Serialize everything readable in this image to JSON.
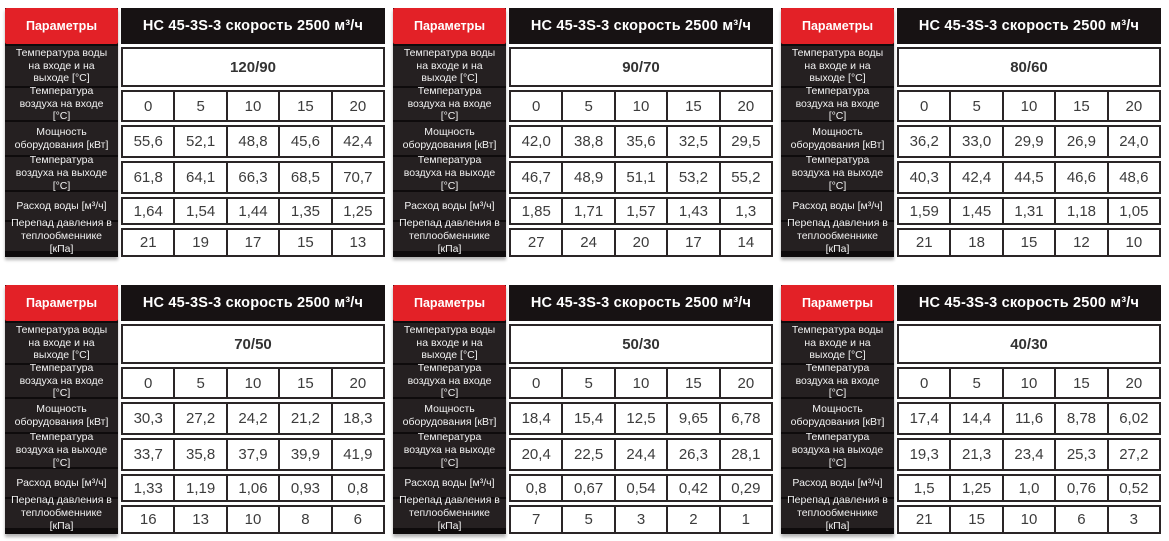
{
  "colors": {
    "accent_red": "#e32127",
    "label_column_bg": "#252021",
    "header_bar_bg": "#171213",
    "cell_border": "#2a2526",
    "value_text": "#3c3c3c"
  },
  "table_header": {
    "param_label": "Параметры",
    "model_label": "НС 45-3S-3 скорость 2500 м³/ч"
  },
  "row_labels": [
    "Температура воды на входе и на выходе [°C]",
    "Температура воздуха на входе [°C]",
    "Мощность оборудования [кВт]",
    "Температура воздуха на выходе [°C]",
    "Расход воды [м³/ч]",
    "Перепад давления в теплообменнике [кПа]"
  ],
  "tables": [
    {
      "water_inout": "120/90",
      "grid": [
        [
          "0",
          "5",
          "10",
          "15",
          "20"
        ],
        [
          "55,6",
          "52,1",
          "48,8",
          "45,6",
          "42,4"
        ],
        [
          "61,8",
          "64,1",
          "66,3",
          "68,5",
          "70,7"
        ],
        [
          "1,64",
          "1,54",
          "1,44",
          "1,35",
          "1,25"
        ],
        [
          "21",
          "19",
          "17",
          "15",
          "13"
        ]
      ]
    },
    {
      "water_inout": "90/70",
      "grid": [
        [
          "0",
          "5",
          "10",
          "15",
          "20"
        ],
        [
          "42,0",
          "38,8",
          "35,6",
          "32,5",
          "29,5"
        ],
        [
          "46,7",
          "48,9",
          "51,1",
          "53,2",
          "55,2"
        ],
        [
          "1,85",
          "1,71",
          "1,57",
          "1,43",
          "1,3"
        ],
        [
          "27",
          "24",
          "20",
          "17",
          "14"
        ]
      ]
    },
    {
      "water_inout": "80/60",
      "grid": [
        [
          "0",
          "5",
          "10",
          "15",
          "20"
        ],
        [
          "36,2",
          "33,0",
          "29,9",
          "26,9",
          "24,0"
        ],
        [
          "40,3",
          "42,4",
          "44,5",
          "46,6",
          "48,6"
        ],
        [
          "1,59",
          "1,45",
          "1,31",
          "1,18",
          "1,05"
        ],
        [
          "21",
          "18",
          "15",
          "12",
          "10"
        ]
      ]
    },
    {
      "water_inout": "70/50",
      "grid": [
        [
          "0",
          "5",
          "10",
          "15",
          "20"
        ],
        [
          "30,3",
          "27,2",
          "24,2",
          "21,2",
          "18,3"
        ],
        [
          "33,7",
          "35,8",
          "37,9",
          "39,9",
          "41,9"
        ],
        [
          "1,33",
          "1,19",
          "1,06",
          "0,93",
          "0,8"
        ],
        [
          "16",
          "13",
          "10",
          "8",
          "6"
        ]
      ]
    },
    {
      "water_inout": "50/30",
      "grid": [
        [
          "0",
          "5",
          "10",
          "15",
          "20"
        ],
        [
          "18,4",
          "15,4",
          "12,5",
          "9,65",
          "6,78"
        ],
        [
          "20,4",
          "22,5",
          "24,4",
          "26,3",
          "28,1"
        ],
        [
          "0,8",
          "0,67",
          "0,54",
          "0,42",
          "0,29"
        ],
        [
          "7",
          "5",
          "3",
          "2",
          "1"
        ]
      ]
    },
    {
      "water_inout": "40/30",
      "grid": [
        [
          "0",
          "5",
          "10",
          "15",
          "20"
        ],
        [
          "17,4",
          "14,4",
          "11,6",
          "8,78",
          "6,02"
        ],
        [
          "19,3",
          "21,3",
          "23,4",
          "25,3",
          "27,2"
        ],
        [
          "1,5",
          "1,25",
          "1,0",
          "0,76",
          "0,52"
        ],
        [
          "21",
          "15",
          "10",
          "6",
          "3"
        ]
      ]
    }
  ]
}
